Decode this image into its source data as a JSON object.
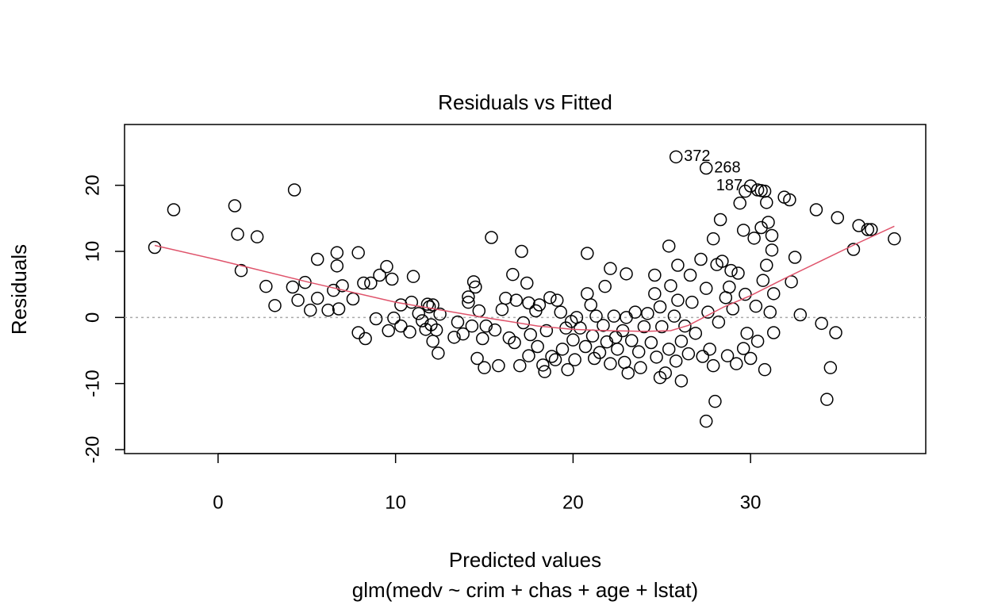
{
  "chart_data": {
    "type": "scatter",
    "title": "Residuals vs Fitted",
    "xlabel": "Predicted values",
    "subtitle": "glm(medv ~ crim + chas + age + lstat)",
    "ylabel": "Residuals",
    "xlim": [
      -5.27,
      39.87
    ],
    "ylim": [
      -20.6,
      29.2
    ],
    "xticks": [
      0,
      10,
      20,
      30
    ],
    "yticks": [
      -20,
      -10,
      0,
      10,
      20
    ],
    "point_color": "#000000",
    "x": [
      -3.57,
      -2.5,
      0.94,
      1.1,
      1.3,
      2.2,
      2.7,
      3.2,
      4.3,
      4.2,
      4.5,
      4.9,
      5.2,
      5.6,
      5.6,
      6.2,
      6.5,
      6.7,
      6.7,
      6.8,
      7.0,
      7.6,
      7.9,
      7.9,
      8.2,
      8.3,
      8.6,
      8.9,
      9.1,
      9.5,
      9.6,
      9.8,
      9.9,
      10.3,
      10.3,
      10.8,
      10.9,
      11.0,
      11.3,
      11.5,
      11.7,
      11.8,
      11.9,
      12.0,
      12.1,
      12.1,
      12.3,
      12.4,
      12.5,
      13.3,
      13.5,
      13.8,
      14.1,
      14.1,
      14.3,
      14.4,
      14.5,
      14.6,
      14.7,
      14.9,
      15.0,
      15.1,
      15.4,
      15.6,
      15.8,
      16.0,
      16.2,
      16.4,
      16.6,
      16.7,
      16.8,
      17.0,
      17.1,
      17.2,
      17.4,
      17.5,
      17.5,
      17.6,
      17.9,
      18.0,
      18.1,
      18.3,
      18.4,
      18.5,
      18.7,
      18.8,
      19.0,
      19.1,
      19.3,
      19.4,
      19.6,
      19.7,
      19.9,
      20.0,
      20.1,
      20.2,
      20.4,
      20.7,
      20.8,
      20.8,
      21.0,
      21.1,
      21.2,
      21.3,
      21.5,
      21.7,
      21.8,
      21.9,
      22.1,
      22.1,
      22.3,
      22.4,
      22.5,
      22.8,
      22.9,
      23.0,
      23.0,
      23.1,
      23.3,
      23.5,
      23.7,
      23.8,
      24.0,
      24.2,
      24.4,
      24.6,
      24.6,
      24.7,
      24.9,
      24.9,
      25.0,
      25.2,
      25.4,
      25.4,
      25.5,
      25.7,
      25.8,
      25.8,
      25.9,
      25.9,
      26.1,
      26.1,
      26.3,
      26.5,
      26.6,
      26.7,
      26.9,
      27.2,
      27.3,
      27.5,
      27.5,
      27.5,
      27.6,
      27.7,
      27.9,
      27.9,
      28.0,
      28.1,
      28.2,
      28.3,
      28.4,
      28.6,
      28.7,
      28.8,
      28.9,
      29.0,
      29.2,
      29.3,
      29.4,
      29.6,
      29.6,
      29.7,
      29.7,
      29.8,
      30.0,
      30.0,
      30.2,
      30.3,
      30.4,
      30.4,
      30.6,
      30.6,
      30.7,
      30.8,
      30.8,
      30.9,
      30.9,
      31.0,
      31.1,
      31.2,
      31.2,
      31.3,
      31.3,
      31.9,
      32.2,
      32.3,
      32.5,
      32.8,
      33.7,
      34.0,
      34.3,
      34.5,
      34.8,
      34.9,
      35.8,
      36.1,
      36.6,
      36.8,
      38.1
    ],
    "y": [
      10.6,
      16.3,
      16.9,
      12.6,
      7.1,
      12.2,
      4.7,
      1.8,
      19.3,
      4.6,
      2.6,
      5.3,
      1.1,
      8.8,
      2.9,
      1.1,
      4.1,
      9.8,
      7.8,
      1.3,
      4.8,
      2.8,
      9.8,
      -2.3,
      5.2,
      -3.2,
      5.2,
      -0.2,
      6.4,
      7.7,
      -2.0,
      5.8,
      -0.1,
      -1.3,
      1.9,
      -2.2,
      2.3,
      6.2,
      0.6,
      -0.5,
      -1.8,
      2.0,
      1.6,
      -1.1,
      -3.6,
      1.9,
      -1.9,
      -5.4,
      0.5,
      -3.0,
      -0.7,
      -2.5,
      3.1,
      2.3,
      -1.3,
      5.4,
      4.6,
      -6.2,
      1.0,
      -3.2,
      -7.6,
      -1.3,
      12.1,
      -1.9,
      -7.3,
      1.2,
      2.9,
      -3.1,
      6.5,
      -3.8,
      2.6,
      -7.3,
      10.0,
      -0.8,
      5.2,
      2.2,
      -5.8,
      -2.6,
      1.0,
      -4.4,
      1.9,
      -7.2,
      -8.2,
      -2.0,
      3.0,
      -5.9,
      -6.4,
      2.6,
      0.8,
      -4.8,
      -1.6,
      -7.9,
      -0.6,
      -3.4,
      -6.4,
      0.0,
      -1.6,
      -4.4,
      3.6,
      9.7,
      1.9,
      -2.8,
      -6.2,
      0.2,
      -5.3,
      -1.2,
      4.7,
      -3.7,
      7.4,
      -7.0,
      0.2,
      -3.0,
      -4.8,
      -2.0,
      -6.8,
      6.6,
      0.0,
      -8.4,
      -3.5,
      0.8,
      -5.2,
      -7.6,
      -1.4,
      0.6,
      -3.8,
      6.4,
      3.6,
      -6.0,
      1.6,
      -9.1,
      -1.4,
      -8.4,
      -4.8,
      10.8,
      4.8,
      0.2,
      -6.6,
      24.3,
      7.9,
      2.6,
      -3.6,
      -9.6,
      -1.3,
      -5.5,
      6.4,
      2.3,
      -2.4,
      8.8,
      -5.9,
      22.6,
      -15.7,
      4.4,
      0.8,
      -4.8,
      11.9,
      -7.3,
      -12.7,
      8.0,
      -0.7,
      14.8,
      8.5,
      3.0,
      -5.8,
      4.6,
      7.1,
      1.3,
      -7.0,
      6.7,
      17.3,
      13.2,
      -4.7,
      19.1,
      3.5,
      -2.4,
      -6.2,
      19.9,
      12.0,
      1.7,
      19.3,
      -3.6,
      13.6,
      19.2,
      5.6,
      -7.9,
      19.1,
      17.4,
      7.9,
      14.4,
      0.8,
      12.4,
      10.2,
      3.6,
      -2.3,
      18.2,
      17.8,
      5.4,
      9.1,
      0.4,
      16.3,
      -0.9,
      -12.4,
      -7.6,
      -2.3,
      15.1,
      10.3,
      13.9,
      13.3,
      13.3,
      11.9
    ],
    "smooth": {
      "color": "#DF536B",
      "x": [
        -3.57,
        0,
        5,
        10,
        15,
        18,
        20,
        22,
        24,
        25.5,
        26.5,
        27.5,
        28.5,
        30,
        32,
        34,
        36,
        38.1
      ],
      "y": [
        10.9,
        8.7,
        5.4,
        2.3,
        0,
        -1.3,
        -1.8,
        -2,
        -2.1,
        -2,
        -1.2,
        0.2,
        1.6,
        3.3,
        6,
        8.6,
        11.2,
        13.8
      ]
    },
    "reference_line": {
      "value": 0,
      "color": "#AAAAAA"
    },
    "annotations": [
      {
        "text": "372",
        "x": 25.8,
        "y": 24.3,
        "side": "right"
      },
      {
        "text": "268",
        "x": 27.5,
        "y": 22.6,
        "side": "right"
      },
      {
        "text": "187",
        "x": 30.0,
        "y": 19.9,
        "side": "left"
      }
    ]
  }
}
